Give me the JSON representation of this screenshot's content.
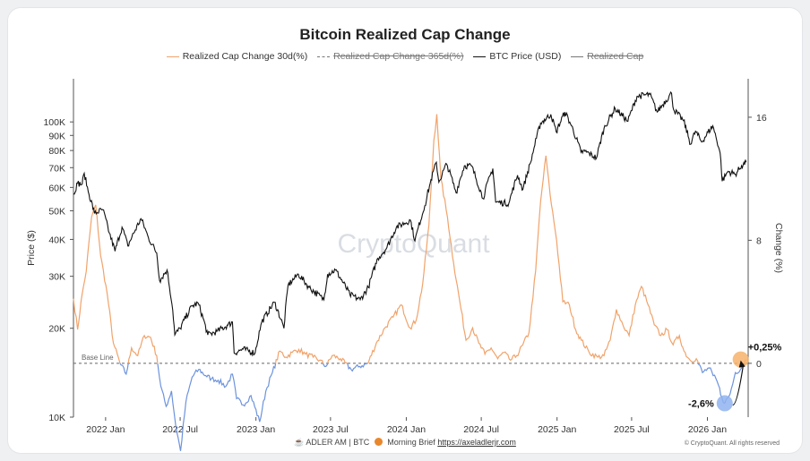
{
  "chart_data": {
    "type": "line",
    "title": "Bitcoin Realized Cap Change",
    "legend": [
      {
        "label": "Realized Cap Change 30d(%)",
        "color": "#f0a36b",
        "style": "solid",
        "struck": false
      },
      {
        "label": "Realized Cap Change 365d(%)",
        "color": "#777777",
        "style": "dashed",
        "struck": true
      },
      {
        "label": "BTC Price (USD)",
        "color": "#111111",
        "style": "solid",
        "struck": false
      },
      {
        "label": "Realized Cap",
        "color": "#777777",
        "style": "solid",
        "struck": true
      }
    ],
    "legend_placement": "top",
    "ylabel_left": "Price ($)",
    "ylabel_right": "Change (%)",
    "y_left_scale": "log",
    "y_left_ticks": [
      {
        "value": 10000,
        "label": "10K"
      },
      {
        "value": 20000,
        "label": "20K"
      },
      {
        "value": 30000,
        "label": "30K"
      },
      {
        "value": 40000,
        "label": "40K"
      },
      {
        "value": 50000,
        "label": "50K"
      },
      {
        "value": 60000,
        "label": "60K"
      },
      {
        "value": 70000,
        "label": "70K"
      },
      {
        "value": 80000,
        "label": "80K"
      },
      {
        "value": 90000,
        "label": "90K"
      },
      {
        "value": 100000,
        "label": "100K"
      }
    ],
    "y_right_ticks": [
      {
        "value": 0,
        "label": "0"
      },
      {
        "value": 8,
        "label": "8"
      },
      {
        "value": 16,
        "label": "16"
      }
    ],
    "y_right_range": [
      -3.5,
      18.5
    ],
    "y_left_range": [
      10000,
      140000
    ],
    "x_range": [
      "2021-10-15",
      "2026-04-10"
    ],
    "x_ticks": [
      {
        "date": "2022-01-01",
        "label": "2022 Jan"
      },
      {
        "date": "2022-07-01",
        "label": "2022 Jul"
      },
      {
        "date": "2023-01-01",
        "label": "2023 Jan"
      },
      {
        "date": "2023-07-01",
        "label": "2023 Jul"
      },
      {
        "date": "2024-01-01",
        "label": "2024 Jan"
      },
      {
        "date": "2024-07-01",
        "label": "2024 Jul"
      },
      {
        "date": "2025-01-01",
        "label": "2025 Jan"
      },
      {
        "date": "2025-07-01",
        "label": "2025 Jul"
      },
      {
        "date": "2026-01-01",
        "label": "2026 Jan"
      }
    ],
    "grid": false,
    "baseline": {
      "label": "Base Line",
      "value": 0
    },
    "watermark": "CryptoQuant",
    "series": [
      {
        "name": "BTC Price (USD)",
        "axis": "left",
        "color": "#111111",
        "points": [
          [
            "2021-10-15",
            57000
          ],
          [
            "2021-10-25",
            62000
          ],
          [
            "2021-11-05",
            61500
          ],
          [
            "2021-11-10",
            67000
          ],
          [
            "2021-11-20",
            58000
          ],
          [
            "2021-12-05",
            49000
          ],
          [
            "2021-12-25",
            50500
          ],
          [
            "2022-01-10",
            42000
          ],
          [
            "2022-01-24",
            36500
          ],
          [
            "2022-02-10",
            44000
          ],
          [
            "2022-02-24",
            38000
          ],
          [
            "2022-03-28",
            47000
          ],
          [
            "2022-04-15",
            40500
          ],
          [
            "2022-05-05",
            36000
          ],
          [
            "2022-05-12",
            29000
          ],
          [
            "2022-05-30",
            31500
          ],
          [
            "2022-06-13",
            23000
          ],
          [
            "2022-06-18",
            19000
          ],
          [
            "2022-07-01",
            20000
          ],
          [
            "2022-07-30",
            23800
          ],
          [
            "2022-08-14",
            24300
          ],
          [
            "2022-09-06",
            19000
          ],
          [
            "2022-09-28",
            19500
          ],
          [
            "2022-10-25",
            20500
          ],
          [
            "2022-11-05",
            21000
          ],
          [
            "2022-11-09",
            16500
          ],
          [
            "2022-12-01",
            17000
          ],
          [
            "2022-12-30",
            16500
          ],
          [
            "2023-01-15",
            21000
          ],
          [
            "2023-02-15",
            24500
          ],
          [
            "2023-03-10",
            20000
          ],
          [
            "2023-03-20",
            28000
          ],
          [
            "2023-04-14",
            30500
          ],
          [
            "2023-05-10",
            27500
          ],
          [
            "2023-06-15",
            25000
          ],
          [
            "2023-06-24",
            30500
          ],
          [
            "2023-07-13",
            31500
          ],
          [
            "2023-08-17",
            26000
          ],
          [
            "2023-09-11",
            25000
          ],
          [
            "2023-10-01",
            27500
          ],
          [
            "2023-10-24",
            34500
          ],
          [
            "2023-11-15",
            37500
          ],
          [
            "2023-12-08",
            44000
          ],
          [
            "2024-01-11",
            46500
          ],
          [
            "2024-01-22",
            39500
          ],
          [
            "2024-02-15",
            52000
          ],
          [
            "2024-02-28",
            62000
          ],
          [
            "2024-03-14",
            73000
          ],
          [
            "2024-03-20",
            62500
          ],
          [
            "2024-04-08",
            72000
          ],
          [
            "2024-05-01",
            57500
          ],
          [
            "2024-05-21",
            71000
          ],
          [
            "2024-06-07",
            71000
          ],
          [
            "2024-07-05",
            55000
          ],
          [
            "2024-07-29",
            69500
          ],
          [
            "2024-08-05",
            53500
          ],
          [
            "2024-09-06",
            53000
          ],
          [
            "2024-09-27",
            66000
          ],
          [
            "2024-10-10",
            59000
          ],
          [
            "2024-10-29",
            73000
          ],
          [
            "2024-11-12",
            88000
          ],
          [
            "2024-11-22",
            99000
          ],
          [
            "2024-12-17",
            106000
          ],
          [
            "2024-12-30",
            92500
          ],
          [
            "2025-01-20",
            108000
          ],
          [
            "2025-02-05",
            97000
          ],
          [
            "2025-02-28",
            79000
          ],
          [
            "2025-03-10",
            79500
          ],
          [
            "2025-04-07",
            75500
          ],
          [
            "2025-04-25",
            95000
          ],
          [
            "2025-05-22",
            111000
          ],
          [
            "2025-06-22",
            100500
          ],
          [
            "2025-07-14",
            122000
          ],
          [
            "2025-08-14",
            124000
          ],
          [
            "2025-09-01",
            108000
          ],
          [
            "2025-10-06",
            125000
          ],
          [
            "2025-10-11",
            110000
          ],
          [
            "2025-11-04",
            101000
          ],
          [
            "2025-11-21",
            84000
          ],
          [
            "2025-12-03",
            93000
          ],
          [
            "2025-12-18",
            85500
          ],
          [
            "2026-01-14",
            97000
          ],
          [
            "2026-02-01",
            78500
          ],
          [
            "2026-02-06",
            63000
          ],
          [
            "2026-02-20",
            68000
          ],
          [
            "2026-03-10",
            66500
          ],
          [
            "2026-03-25",
            71000
          ],
          [
            "2026-04-05",
            73000
          ]
        ]
      },
      {
        "name": "Realized Cap Change 30d(%)",
        "axis": "right",
        "color_positive": "#f0a36b",
        "color_negative": "#6d93dc",
        "points": [
          [
            "2021-10-15",
            4.2
          ],
          [
            "2021-10-25",
            2.2
          ],
          [
            "2021-11-05",
            4.5
          ],
          [
            "2021-11-15",
            6.0
          ],
          [
            "2021-11-28",
            9.5
          ],
          [
            "2021-12-08",
            10.3
          ],
          [
            "2021-12-20",
            7.0
          ],
          [
            "2022-01-05",
            4.5
          ],
          [
            "2022-01-20",
            1.3
          ],
          [
            "2022-02-05",
            0.0
          ],
          [
            "2022-02-20",
            -0.7
          ],
          [
            "2022-03-05",
            1.0
          ],
          [
            "2022-03-20",
            0.5
          ],
          [
            "2022-04-05",
            1.8
          ],
          [
            "2022-04-20",
            1.7
          ],
          [
            "2022-05-05",
            0.5
          ],
          [
            "2022-05-15",
            -1.5
          ],
          [
            "2022-05-28",
            -2.8
          ],
          [
            "2022-06-10",
            -1.8
          ],
          [
            "2022-06-20",
            -4.0
          ],
          [
            "2022-07-02",
            -5.7
          ],
          [
            "2022-07-15",
            -2.5
          ],
          [
            "2022-07-30",
            -0.9
          ],
          [
            "2022-08-15",
            -0.4
          ],
          [
            "2022-09-01",
            -0.8
          ],
          [
            "2022-09-15",
            -1.0
          ],
          [
            "2022-10-01",
            -1.1
          ],
          [
            "2022-10-20",
            -1.5
          ],
          [
            "2022-11-05",
            -0.7
          ],
          [
            "2022-11-15",
            -2.3
          ],
          [
            "2022-12-01",
            -2.7
          ],
          [
            "2022-12-20",
            -2.1
          ],
          [
            "2023-01-10",
            -3.8
          ],
          [
            "2023-01-25",
            -1.8
          ],
          [
            "2023-02-10",
            -0.6
          ],
          [
            "2023-02-28",
            0.8
          ],
          [
            "2023-03-15",
            0.4
          ],
          [
            "2023-03-30",
            0.7
          ],
          [
            "2023-04-15",
            0.9
          ],
          [
            "2023-05-01",
            0.6
          ],
          [
            "2023-05-20",
            0.4
          ],
          [
            "2023-06-05",
            0.2
          ],
          [
            "2023-06-20",
            -0.2
          ],
          [
            "2023-07-05",
            0.5
          ],
          [
            "2023-07-25",
            0.3
          ],
          [
            "2023-08-20",
            -0.4
          ],
          [
            "2023-09-10",
            -0.2
          ],
          [
            "2023-09-30",
            0.0
          ],
          [
            "2023-10-20",
            1.3
          ],
          [
            "2023-11-10",
            2.3
          ],
          [
            "2023-11-30",
            3.0
          ],
          [
            "2023-12-20",
            3.8
          ],
          [
            "2024-01-10",
            2.3
          ],
          [
            "2024-01-25",
            2.8
          ],
          [
            "2024-02-10",
            5.2
          ],
          [
            "2024-02-25",
            9.0
          ],
          [
            "2024-03-08",
            14.5
          ],
          [
            "2024-03-15",
            16.2
          ],
          [
            "2024-03-25",
            12.0
          ],
          [
            "2024-04-10",
            9.5
          ],
          [
            "2024-04-25",
            6.5
          ],
          [
            "2024-05-10",
            4.0
          ],
          [
            "2024-05-25",
            1.5
          ],
          [
            "2024-06-10",
            2.3
          ],
          [
            "2024-06-25",
            1.3
          ],
          [
            "2024-07-10",
            0.6
          ],
          [
            "2024-07-25",
            1.0
          ],
          [
            "2024-08-10",
            0.3
          ],
          [
            "2024-08-25",
            0.7
          ],
          [
            "2024-09-10",
            0.2
          ],
          [
            "2024-09-25",
            0.5
          ],
          [
            "2024-10-10",
            1.2
          ],
          [
            "2024-10-25",
            2.0
          ],
          [
            "2024-11-10",
            6.0
          ],
          [
            "2024-11-22",
            10.5
          ],
          [
            "2024-12-05",
            13.5
          ],
          [
            "2024-12-15",
            11.0
          ],
          [
            "2024-12-31",
            8.0
          ],
          [
            "2025-01-15",
            4.0
          ],
          [
            "2025-01-31",
            3.8
          ],
          [
            "2025-02-15",
            2.2
          ],
          [
            "2025-03-01",
            1.5
          ],
          [
            "2025-03-20",
            0.7
          ],
          [
            "2025-04-10",
            0.4
          ],
          [
            "2025-04-25",
            0.5
          ],
          [
            "2025-05-10",
            1.5
          ],
          [
            "2025-05-25",
            3.5
          ],
          [
            "2025-06-10",
            2.5
          ],
          [
            "2025-06-25",
            1.8
          ],
          [
            "2025-07-10",
            3.8
          ],
          [
            "2025-07-25",
            5.0
          ],
          [
            "2025-08-10",
            3.8
          ],
          [
            "2025-08-25",
            2.5
          ],
          [
            "2025-09-10",
            1.8
          ],
          [
            "2025-09-25",
            2.2
          ],
          [
            "2025-10-10",
            1.2
          ],
          [
            "2025-10-25",
            1.8
          ],
          [
            "2025-11-05",
            0.8
          ],
          [
            "2025-11-20",
            0.2
          ],
          [
            "2025-12-05",
            0.3
          ],
          [
            "2025-12-20",
            -0.6
          ],
          [
            "2026-01-05",
            -0.3
          ],
          [
            "2026-01-15",
            -0.8
          ],
          [
            "2026-01-25",
            -1.2
          ],
          [
            "2026-02-05",
            -2.2
          ],
          [
            "2026-02-12",
            -2.6
          ],
          [
            "2026-02-25",
            -2.0
          ],
          [
            "2026-03-10",
            -0.6
          ],
          [
            "2026-03-25",
            -0.3
          ],
          [
            "2026-04-05",
            0.25
          ]
        ]
      }
    ],
    "annotations": [
      {
        "label": "+0,25%",
        "date": "2026-04-05",
        "value": 0.25,
        "marker_color": "#f6b26b"
      },
      {
        "label": "-2,6%",
        "date": "2026-02-12",
        "value": -2.6,
        "marker_color": "#8fb3ee"
      }
    ]
  },
  "footer": {
    "author": "ADLER AM | BTC",
    "brief": "Morning Brief",
    "link": "https://axeladlerjr.com",
    "copyright": "© CryptoQuant. All rights reserved"
  }
}
